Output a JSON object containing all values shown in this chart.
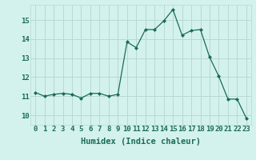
{
  "x": [
    0,
    1,
    2,
    3,
    4,
    5,
    6,
    7,
    8,
    9,
    10,
    11,
    12,
    13,
    14,
    15,
    16,
    17,
    18,
    19,
    20,
    21,
    22,
    23
  ],
  "y": [
    11.2,
    11.0,
    11.1,
    11.15,
    11.1,
    10.9,
    11.15,
    11.15,
    11.0,
    11.1,
    13.85,
    13.55,
    14.5,
    14.5,
    14.95,
    15.55,
    14.2,
    14.45,
    14.5,
    13.05,
    12.05,
    10.85,
    10.85,
    9.85
  ],
  "line_color": "#1a6b5a",
  "marker": "D",
  "marker_size": 2.0,
  "bg_color": "#d4f2ed",
  "grid_color": "#b8d8d4",
  "xlabel": "Humidex (Indice chaleur)",
  "xlim": [
    -0.5,
    23.5
  ],
  "ylim": [
    9.5,
    15.8
  ],
  "yticks": [
    10,
    11,
    12,
    13,
    14,
    15
  ],
  "xticks": [
    0,
    1,
    2,
    3,
    4,
    5,
    6,
    7,
    8,
    9,
    10,
    11,
    12,
    13,
    14,
    15,
    16,
    17,
    18,
    19,
    20,
    21,
    22,
    23
  ],
  "xtick_labels": [
    "0",
    "1",
    "2",
    "3",
    "4",
    "5",
    "6",
    "7",
    "8",
    "9",
    "10",
    "11",
    "12",
    "13",
    "14",
    "15",
    "16",
    "17",
    "18",
    "19",
    "20",
    "21",
    "22",
    "23"
  ],
  "tick_color": "#1a6b5a",
  "label_color": "#1a6b5a",
  "tick_fontsize": 6.5,
  "xlabel_fontsize": 7.5
}
